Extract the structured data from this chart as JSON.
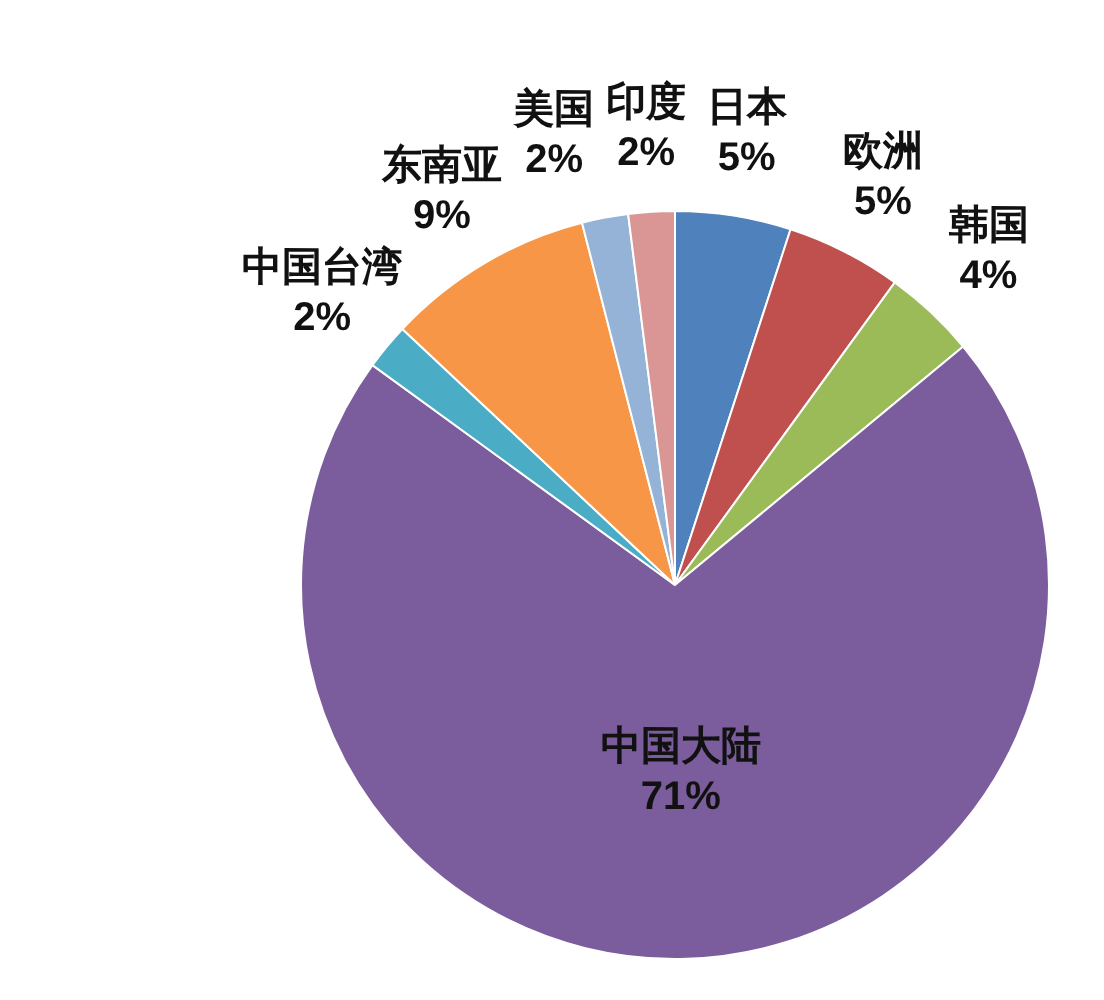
{
  "chart_data": {
    "type": "pie",
    "categories": [
      "日本",
      "欧洲",
      "韩国",
      "中国大陆",
      "中国台湾",
      "东南亚",
      "美国",
      "印度"
    ],
    "values": [
      5,
      5,
      4,
      71,
      2,
      9,
      2,
      2
    ],
    "value_labels": [
      "5%",
      "5%",
      "4%",
      "71%",
      "2%",
      "9%",
      "2%",
      "2%"
    ],
    "colors": [
      "#4f81bd",
      "#c0504d",
      "#9bbb59",
      "#7b5c9c",
      "#4bacc6",
      "#f79646",
      "#95b3d7",
      "#d99694"
    ],
    "legend": false
  }
}
